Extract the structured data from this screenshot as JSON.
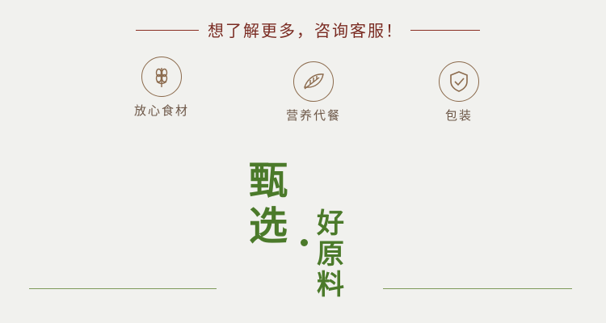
{
  "banner": {
    "text": "想了解更多，咨询客服！"
  },
  "features": [
    {
      "icon": "wheat-icon",
      "label": "放心食材"
    },
    {
      "icon": "leaf-icon",
      "label": "营养代餐"
    },
    {
      "icon": "shield-check-icon",
      "label": "包装"
    }
  ],
  "heading": {
    "left": "甄选",
    "right": "好原料"
  },
  "colors": {
    "background": "#f1f1ee",
    "banner_text": "#7a2b22",
    "icon_stroke": "#8b6a4c",
    "heading_green": "#4b7a2a"
  }
}
